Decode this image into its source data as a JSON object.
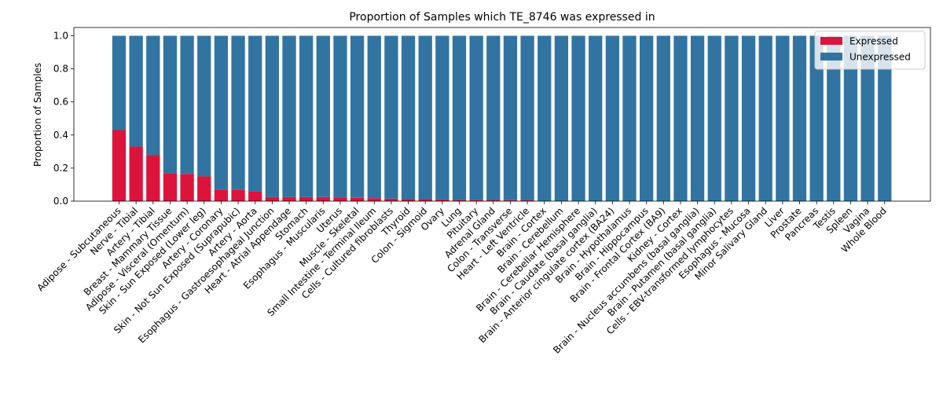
{
  "chart_data": {
    "type": "bar",
    "stacked": true,
    "title": "Proportion of Samples which TE_8746 was expressed in",
    "xlabel": "",
    "ylabel": "Proportion of Samples",
    "ylim": [
      0,
      1.05
    ],
    "yticks": [
      "0.0",
      "0.2",
      "0.4",
      "0.6",
      "0.8",
      "1.0"
    ],
    "legend_position": "top-right",
    "categories": [
      "Adipose - Subcutaneous",
      "Nerve - Tibial",
      "Artery - Tibial",
      "Breast - Mammary Tissue",
      "Adipose - Visceral (Omentum)",
      "Skin - Sun Exposed (Lower leg)",
      "Artery - Coronary",
      "Skin - Not Sun Exposed (Suprapubic)",
      "Artery - Aorta",
      "Esophagus - Gastroesophageal Junction",
      "Heart - Atrial Appendage",
      "Stomach",
      "Esophagus - Muscularis",
      "Uterus",
      "Muscle - Skeletal",
      "Small Intestine - Terminal Ileum",
      "Cells - Cultured fibroblasts",
      "Thyroid",
      "Colon - Sigmoid",
      "Ovary",
      "Lung",
      "Pituitary",
      "Adrenal Gland",
      "Colon - Transverse",
      "Heart - Left Ventricle",
      "Brain - Cortex",
      "Brain - Cerebellum",
      "Brain - Cerebellar Hemisphere",
      "Brain - Caudate (basal ganglia)",
      "Brain - Anterior cingulate cortex (BA24)",
      "Brain - Hypothalamus",
      "Brain - Hippocampus",
      "Brain - Frontal Cortex (BA9)",
      "Kidney - Cortex",
      "Brain - Nucleus accumbens (basal ganglia)",
      "Brain - Putamen (basal ganglia)",
      "Cells - EBV-transformed lymphocytes",
      "Esophagus - Mucosa",
      "Minor Salivary Gland",
      "Liver",
      "Prostate",
      "Pancreas",
      "Testis",
      "Spleen",
      "Vagina",
      "Whole Blood"
    ],
    "series": [
      {
        "name": "Expressed",
        "color": "#dc143c",
        "values": [
          0.43,
          0.33,
          0.28,
          0.17,
          0.165,
          0.15,
          0.07,
          0.07,
          0.06,
          0.025,
          0.025,
          0.025,
          0.025,
          0.022,
          0.02,
          0.018,
          0.015,
          0.012,
          0.012,
          0.01,
          0.008,
          0.008,
          0.007,
          0.006,
          0.005,
          0,
          0,
          0,
          0,
          0,
          0,
          0,
          0,
          0,
          0,
          0,
          0,
          0,
          0,
          0,
          0,
          0,
          0,
          0,
          0,
          0
        ]
      },
      {
        "name": "Unexpressed",
        "color": "#3274a1",
        "values": [
          0.57,
          0.67,
          0.72,
          0.83,
          0.835,
          0.85,
          0.93,
          0.93,
          0.94,
          0.975,
          0.975,
          0.975,
          0.975,
          0.978,
          0.98,
          0.982,
          0.985,
          0.988,
          0.988,
          0.99,
          0.992,
          0.992,
          0.993,
          0.994,
          0.995,
          1,
          1,
          1,
          1,
          1,
          1,
          1,
          1,
          1,
          1,
          1,
          1,
          1,
          1,
          1,
          1,
          1,
          1,
          1,
          1,
          1
        ]
      }
    ]
  }
}
